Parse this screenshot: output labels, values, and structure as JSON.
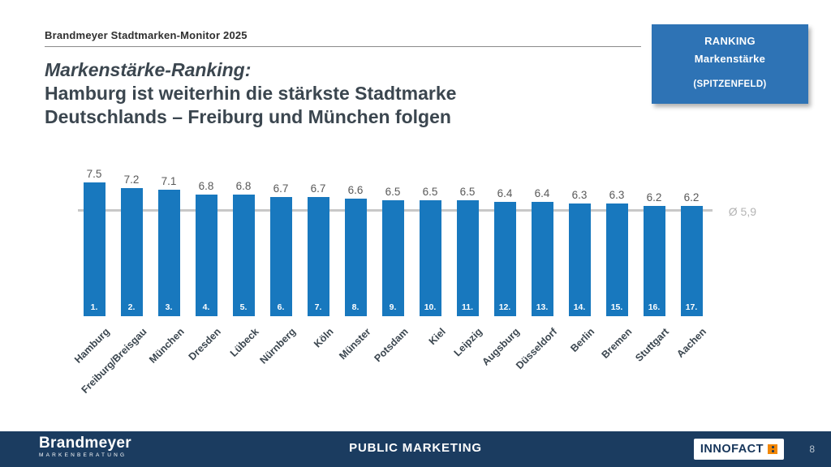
{
  "meta": {
    "kicker": "Brandmeyer Stadtmarken-Monitor 2025",
    "page_number": "8"
  },
  "ranking_box": {
    "line1": "RANKING",
    "line2": "Markenstärke",
    "line3": "(SPITZENFELD)"
  },
  "title": {
    "line1": "Markenstärke-Ranking:",
    "line2": "Hamburg ist weiterhin die stärkste Stadtmarke",
    "line3": "Deutschlands – Freiburg und München folgen"
  },
  "chart_data": {
    "type": "bar",
    "title": "Markenstärke-Ranking",
    "categories": [
      "Hamburg",
      "Freiburg/Breisgau",
      "München",
      "Dresden",
      "Lübeck",
      "Nürnberg",
      "Köln",
      "Münster",
      "Potsdam",
      "Kiel",
      "Leipzig",
      "Augsburg",
      "Düsseldorf",
      "Berlin",
      "Bremen",
      "Stuttgart",
      "Aachen"
    ],
    "values": [
      7.5,
      7.2,
      7.1,
      6.8,
      6.8,
      6.7,
      6.7,
      6.6,
      6.5,
      6.5,
      6.5,
      6.4,
      6.4,
      6.3,
      6.3,
      6.2,
      6.2
    ],
    "value_labels": [
      "7.5",
      "7.2",
      "7.1",
      "6.8",
      "6.8",
      "6.7",
      "6.7",
      "6.6",
      "6.5",
      "6.5",
      "6.5",
      "6.4",
      "6.4",
      "6.3",
      "6.3",
      "6.2",
      "6.2"
    ],
    "rank_labels": [
      "1.",
      "2.",
      "3.",
      "4.",
      "5.",
      "6.",
      "7.",
      "8.",
      "9.",
      "10.",
      "11.",
      "12.",
      "13.",
      "14.",
      "15.",
      "16.",
      "17."
    ],
    "average_line": {
      "label": "Ø 5,9",
      "value": 5.9
    },
    "ylim": [
      0,
      7.5
    ],
    "bar_color": "#1878be",
    "grid": false,
    "legend": false
  },
  "footer": {
    "brand_name": "Brandmeyer",
    "brand_sub": "MARKENBERATUNG",
    "center_text": "PUBLIC MARKETING",
    "innofact_label": "INNOFACT"
  },
  "colors": {
    "bar_blue": "#1878be",
    "footer_navy": "#1b3c60",
    "ranking_box_blue": "#2e73b5",
    "innofact_orange": "#f28705"
  }
}
